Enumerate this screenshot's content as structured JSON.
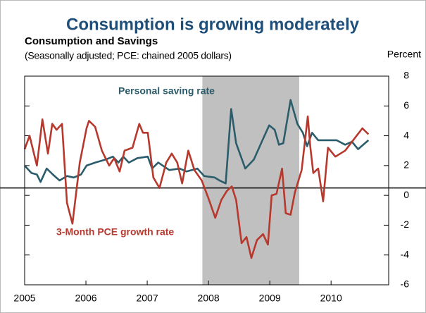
{
  "chart_data": {
    "type": "line",
    "title": "Consumption is growing moderately",
    "subtitle": "Consumption and Savings",
    "note": "(Seasonally adjusted; PCE: chained 2005 dollars)",
    "y_axis_label": "Percent",
    "xlim": [
      2005,
      2010.94
    ],
    "xticks": [
      2005,
      2006,
      2007,
      2008,
      2009,
      2010
    ],
    "ylim": [
      -6,
      8
    ],
    "yticks": [
      -6,
      -4,
      -2,
      0,
      2,
      4,
      6,
      8
    ],
    "reference_line": 0.5,
    "shaded_region": [
      2007.9,
      2009.48
    ],
    "shade_color": "#c0c0c0",
    "series": [
      {
        "name": "Personal saving rate",
        "color": "#2b5c6b",
        "x": [
          2005.0,
          2005.11,
          2005.2,
          2005.26,
          2005.36,
          2005.46,
          2005.57,
          2005.69,
          2005.8,
          2005.92,
          2006.01,
          2006.15,
          2006.32,
          2006.44,
          2006.53,
          2006.61,
          2006.7,
          2006.84,
          2007.01,
          2007.08,
          2007.18,
          2007.36,
          2007.53,
          2007.64,
          2007.82,
          2007.93,
          2008.1,
          2008.18,
          2008.28,
          2008.37,
          2008.45,
          2008.6,
          2008.74,
          2008.87,
          2008.99,
          2009.08,
          2009.15,
          2009.22,
          2009.34,
          2009.45,
          2009.54,
          2009.61,
          2009.69,
          2009.79,
          2009.94,
          2010.09,
          2010.23,
          2010.34,
          2010.44,
          2010.61
        ],
        "values": [
          2.0,
          1.5,
          1.4,
          0.9,
          1.8,
          1.4,
          1.0,
          1.3,
          1.2,
          1.4,
          2.0,
          2.2,
          2.4,
          2.6,
          2.2,
          2.6,
          2.2,
          2.5,
          2.6,
          1.8,
          2.2,
          1.7,
          1.8,
          1.6,
          1.8,
          1.3,
          1.2,
          1.0,
          0.8,
          5.8,
          3.5,
          1.8,
          2.4,
          3.6,
          4.7,
          4.4,
          3.4,
          3.5,
          6.4,
          4.8,
          4.2,
          3.3,
          4.2,
          3.7,
          3.7,
          3.7,
          3.4,
          3.6,
          3.1,
          3.7
        ]
      },
      {
        "name": "3-Month PCE growth rate",
        "color": "#b7382d",
        "x": [
          2005.0,
          2005.08,
          2005.2,
          2005.29,
          2005.38,
          2005.45,
          2005.52,
          2005.61,
          2005.69,
          2005.78,
          2005.9,
          2006.01,
          2006.05,
          2006.15,
          2006.26,
          2006.38,
          2006.46,
          2006.55,
          2006.63,
          2006.76,
          2006.87,
          2006.93,
          2007.01,
          2007.1,
          2007.2,
          2007.31,
          2007.4,
          2007.49,
          2007.57,
          2007.67,
          2007.77,
          2007.89,
          2008.0,
          2008.11,
          2008.21,
          2008.3,
          2008.38,
          2008.45,
          2008.54,
          2008.62,
          2008.7,
          2008.79,
          2008.89,
          2008.97,
          2009.03,
          2009.11,
          2009.2,
          2009.26,
          2009.34,
          2009.41,
          2009.52,
          2009.62,
          2009.66,
          2009.71,
          2009.79,
          2009.87,
          2009.95,
          2010.07,
          2010.23,
          2010.51,
          2010.61
        ],
        "values": [
          3.1,
          4.0,
          2.0,
          5.1,
          2.8,
          4.8,
          4.4,
          4.8,
          -0.5,
          -1.9,
          2.2,
          4.5,
          5.0,
          4.6,
          3.0,
          2.0,
          2.5,
          1.6,
          3.0,
          3.2,
          4.8,
          4.2,
          4.2,
          1.2,
          0.5,
          2.2,
          2.8,
          2.2,
          0.8,
          3.0,
          1.7,
          1.0,
          -0.2,
          -1.5,
          -0.3,
          0.3,
          0.6,
          -0.3,
          -3.2,
          -2.8,
          -4.2,
          -3.0,
          -2.6,
          -3.3,
          0.0,
          0.1,
          1.8,
          -1.2,
          -1.3,
          0.2,
          1.7,
          5.3,
          3.3,
          1.5,
          1.8,
          -0.4,
          3.2,
          2.6,
          3.0,
          4.5,
          4.1
        ]
      }
    ]
  }
}
